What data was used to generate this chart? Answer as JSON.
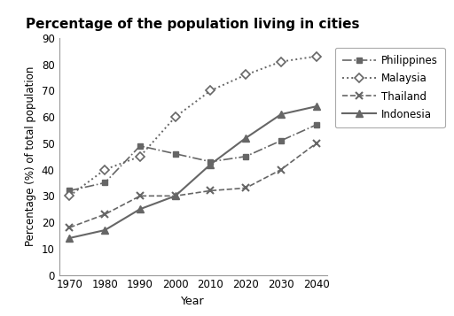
{
  "title": "Percentage of the population living in cities",
  "xlabel": "Year",
  "ylabel": "Percentage (%) of total population",
  "years": [
    1970,
    1980,
    1990,
    2000,
    2010,
    2020,
    2030,
    2040
  ],
  "philippines": [
    32,
    35,
    49,
    46,
    43,
    45,
    51,
    57
  ],
  "malaysia": [
    30,
    40,
    45,
    60,
    70,
    76,
    81,
    83
  ],
  "thailand": [
    18,
    23,
    30,
    30,
    32,
    33,
    40,
    50
  ],
  "indonesia": [
    14,
    17,
    25,
    30,
    42,
    52,
    61,
    64
  ],
  "ylim": [
    0,
    90
  ],
  "yticks": [
    0,
    10,
    20,
    30,
    40,
    50,
    60,
    70,
    80,
    90
  ],
  "line_color": "#666666",
  "bg_color": "#ffffff",
  "title_fontsize": 11,
  "axis_fontsize": 9,
  "tick_fontsize": 8.5
}
